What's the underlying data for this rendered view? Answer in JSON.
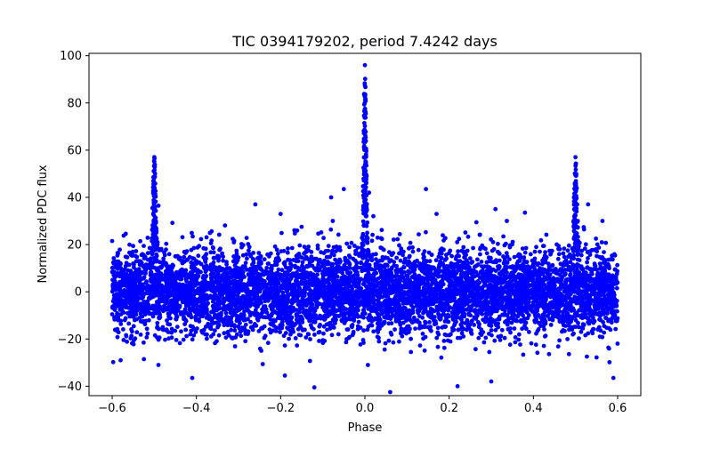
{
  "chart_data": {
    "type": "scatter",
    "title": "TIC 0394179202, period 7.4242 days",
    "xlabel": "Phase",
    "ylabel": "Normalized PDC flux",
    "xlim": [
      -0.655,
      0.655
    ],
    "ylim": [
      -44,
      101
    ],
    "xticks": [
      -0.6,
      -0.4,
      -0.2,
      0.0,
      0.2,
      0.4,
      0.6
    ],
    "xtick_labels": [
      "−0.6",
      "−0.4",
      "−0.2",
      "0.0",
      "0.2",
      "0.4",
      "0.6"
    ],
    "yticks": [
      -40,
      -20,
      0,
      20,
      40,
      60,
      80,
      100
    ],
    "ytick_labels": [
      "−40",
      "−20",
      "0",
      "20",
      "40",
      "60",
      "80",
      "100"
    ],
    "grid": false,
    "series": [
      {
        "name": "PDC flux",
        "color": "#0000ff",
        "marker": "circle",
        "phase_range": [
          -0.6,
          0.6
        ],
        "baseline_mean": 0,
        "baseline_scatter": 9,
        "typical_upper_envelope": 22,
        "typical_lower_envelope": -25,
        "primary_flare": {
          "phase": 0.0,
          "peak_flux": 96
        },
        "secondary_flares": [
          {
            "phase": -0.5,
            "peak_flux": 57
          },
          {
            "phase": 0.5,
            "peak_flux": 57
          }
        ],
        "notable_points": [
          {
            "x": -0.58,
            "y": -29
          },
          {
            "x": -0.41,
            "y": -36.5
          },
          {
            "x": -0.12,
            "y": -40.5
          },
          {
            "x": -0.19,
            "y": -35.5
          },
          {
            "x": 0.06,
            "y": -42.5
          },
          {
            "x": 0.22,
            "y": -40
          },
          {
            "x": 0.3,
            "y": -38
          },
          {
            "x": 0.59,
            "y": -36.5
          },
          {
            "x": 0.145,
            "y": 43.5
          },
          {
            "x": -0.05,
            "y": 43.5
          },
          {
            "x": -0.08,
            "y": 40
          },
          {
            "x": -0.49,
            "y": 36.5
          },
          {
            "x": -0.2,
            "y": 33
          },
          {
            "x": -0.26,
            "y": 37
          },
          {
            "x": 0.17,
            "y": 33
          },
          {
            "x": 0.31,
            "y": 35
          },
          {
            "x": 0.38,
            "y": 33.5
          },
          {
            "x": 0.53,
            "y": 37
          },
          {
            "x": -0.6,
            "y": 21.5
          },
          {
            "x": 0.02,
            "y": 32
          },
          {
            "x": 0.01,
            "y": 42
          }
        ]
      }
    ]
  }
}
